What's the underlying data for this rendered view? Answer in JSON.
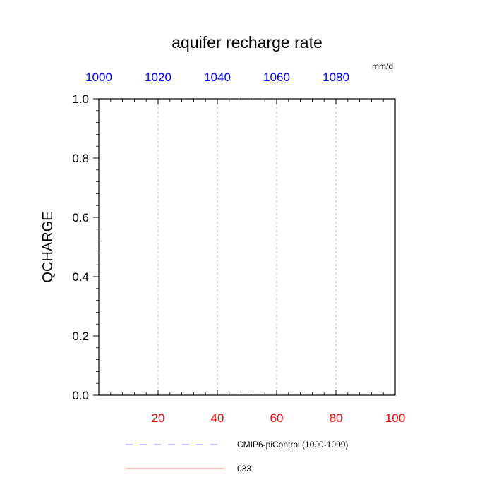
{
  "chart_data": {
    "type": "line",
    "title": "aquifer recharge rate",
    "units": "mm/d",
    "ylabel": "QCHARGE",
    "ylim": [
      0,
      1
    ],
    "y_ticks": [
      "0.0",
      "0.2",
      "0.4",
      "0.6",
      "0.8",
      "1.0"
    ],
    "y_tick_values": [
      0,
      0.2,
      0.4,
      0.6,
      0.8,
      1.0
    ],
    "bottom_axis": {
      "range": [
        0,
        100
      ],
      "ticks": [
        "20",
        "40",
        "60",
        "80",
        "100"
      ],
      "tick_values": [
        20,
        40,
        60,
        80,
        100
      ],
      "color": "#ff0000"
    },
    "top_axis": {
      "range": [
        1000,
        1100
      ],
      "ticks": [
        "1000",
        "1020",
        "1040",
        "1060",
        "1080"
      ],
      "tick_values": [
        1000,
        1020,
        1040,
        1060,
        1080
      ],
      "color": "#0000ff"
    },
    "grid": {
      "vertical": true,
      "style": "dashed",
      "color": "#aaaaaa"
    },
    "legend": {
      "placement": "bottom",
      "entries": [
        {
          "label": "CMIP6-piControl (1000-1099)",
          "color": "#8080ff",
          "style": "dashed"
        },
        {
          "label": "033",
          "color": "#ff8080",
          "style": "solid"
        }
      ]
    },
    "series": [
      {
        "name": "CMIP6-piControl (1000-1099)",
        "axis": "top",
        "x": [
          1000,
          1099
        ],
        "values": [
          0,
          0
        ],
        "color": "#8080ff",
        "style": "dashed"
      },
      {
        "name": "033",
        "axis": "bottom",
        "x": [
          1,
          100
        ],
        "values": [
          0,
          0
        ],
        "color": "#ff8080",
        "style": "solid"
      }
    ]
  }
}
